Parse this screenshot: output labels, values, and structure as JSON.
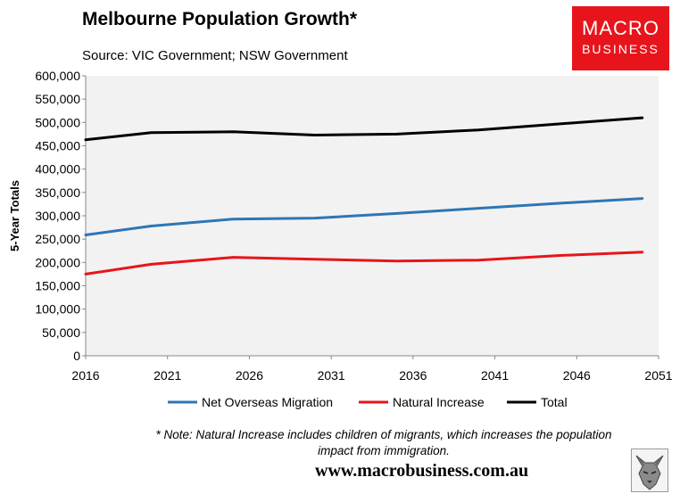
{
  "header": {
    "title": "Melbourne Population Growth*",
    "source": "Source: VIC Government; NSW Government"
  },
  "logo": {
    "line1": "MACRO",
    "line2": "BUSINESS"
  },
  "footer": {
    "note_line1": "* Note: Natural Increase includes children of migrants, which increases the population",
    "note_line2": "impact from immigration.",
    "url": "www.macrobusiness.com.au"
  },
  "chart_data": {
    "type": "line",
    "title": "Melbourne Population Growth*",
    "ylabel": "5-Year Totals",
    "xlabel": "",
    "xlim": [
      2016,
      2051
    ],
    "ylim": [
      0,
      600000
    ],
    "x_ticks": [
      "2016",
      "2021",
      "2026",
      "2031",
      "2036",
      "2041",
      "2046",
      "2051"
    ],
    "y_ticks": [
      "0",
      "50,000",
      "100,000",
      "150,000",
      "200,000",
      "250,000",
      "300,000",
      "350,000",
      "400,000",
      "450,000",
      "500,000",
      "550,000",
      "600,000"
    ],
    "x": [
      2016,
      2020,
      2025,
      2030,
      2035,
      2040,
      2045,
      2050
    ],
    "series": [
      {
        "name": "Net Overseas Migration",
        "color": "#2e75b6",
        "values": [
          259000,
          278000,
          293000,
          295000,
          305000,
          316000,
          327000,
          337000
        ]
      },
      {
        "name": "Natural Increase",
        "color": "#e8141b",
        "values": [
          175000,
          196000,
          211000,
          207000,
          203000,
          205000,
          215000,
          222000
        ]
      },
      {
        "name": "Total",
        "color": "#000000",
        "values": [
          463000,
          478000,
          480000,
          473000,
          475000,
          484000,
          497000,
          510000
        ]
      }
    ],
    "legend": "bottom",
    "grid": false
  }
}
